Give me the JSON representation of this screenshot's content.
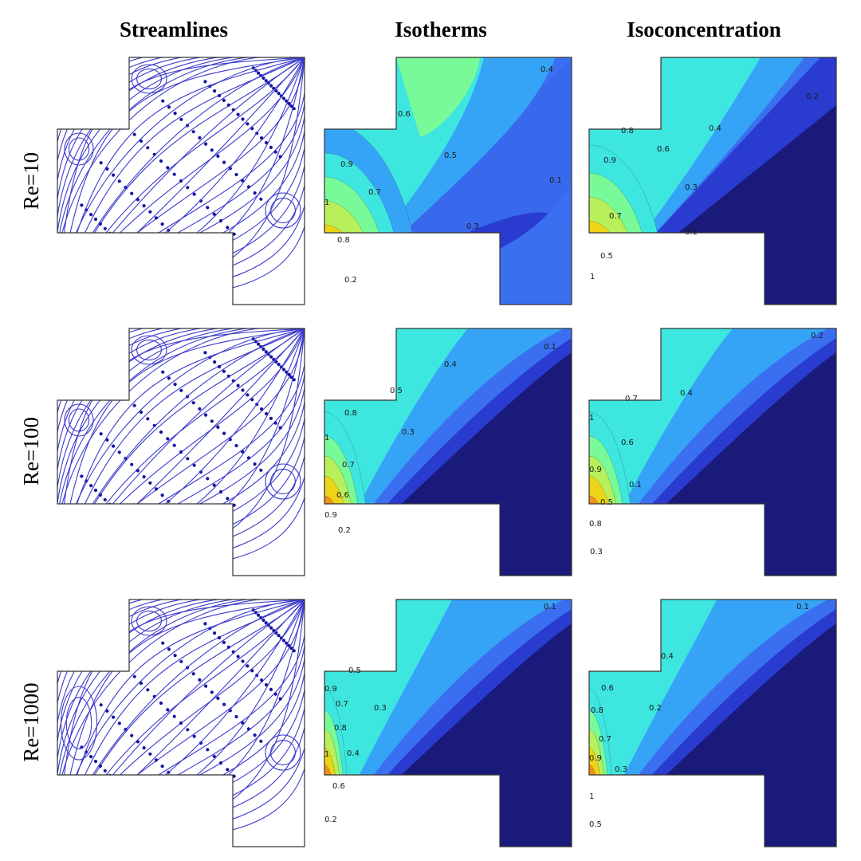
{
  "columns": [
    {
      "key": "streamlines",
      "title": "Streamlines"
    },
    {
      "key": "isotherms",
      "title": "Isotherms"
    },
    {
      "key": "isoconcentration",
      "title": "Isoconcentration"
    }
  ],
  "rows": [
    {
      "label": "Re=10",
      "isotherm_labels": [
        "0.4",
        "0.6",
        "0.9",
        "0.5",
        "0.7",
        "1",
        "0.1",
        "0.3",
        "0.8",
        "0.2"
      ],
      "isoconcentration_labels": [
        "0.8",
        "0.2",
        "0.4",
        "0.9",
        "0.6",
        "0.3",
        "0.7",
        "0.1",
        "0.5",
        "1"
      ]
    },
    {
      "label": "Re=100",
      "isotherm_labels": [
        "0.1",
        "0.4",
        "0.5",
        "0.8",
        "1",
        "0.3",
        "0.7",
        "0.6",
        "0.9",
        "0.2"
      ],
      "isoconcentration_labels": [
        "0.2",
        "0.7",
        "0.4",
        "1",
        "0.6",
        "0.9",
        "0.1",
        "0.5",
        "0.8",
        "0.3"
      ]
    },
    {
      "label": "Re=1000",
      "isotherm_labels": [
        "0.1",
        "0.5",
        "0.9",
        "0.7",
        "0.3",
        "0.8",
        "1",
        "0.4",
        "0.6",
        "0.2"
      ],
      "isoconcentration_labels": [
        "0.1",
        "0.4",
        "0.6",
        "0.8",
        "0.2",
        "0.7",
        "0.9",
        "0.3",
        "1",
        "0.5"
      ]
    }
  ],
  "colormap": [
    "#1a1a7a",
    "#2a3bd0",
    "#3a6ff0",
    "#36a4f6",
    "#3ee6e0",
    "#78fa98",
    "#b7f05a",
    "#ecd419",
    "#f2921a",
    "#e84a10",
    "#c81a08"
  ]
}
